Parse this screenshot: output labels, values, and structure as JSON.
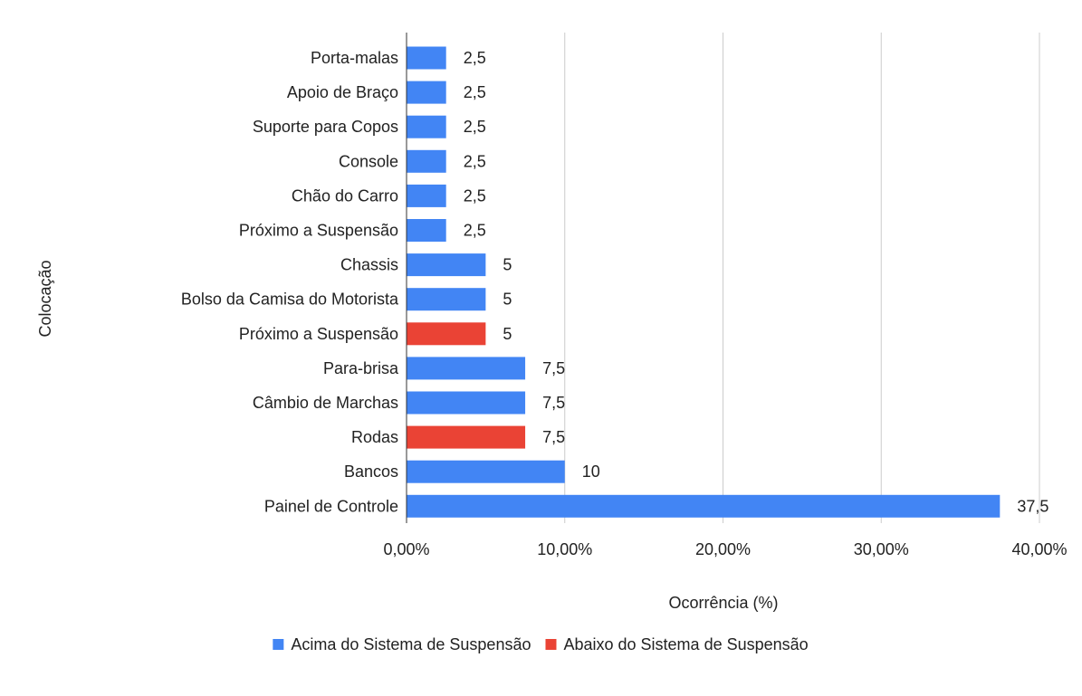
{
  "chart_data": {
    "type": "bar",
    "orientation": "horizontal",
    "categories": [
      "Porta-malas",
      "Apoio de Braço",
      "Suporte para Copos",
      "Console",
      "Chão do Carro",
      "Próximo a Suspensão",
      "Chassis",
      "Bolso da Camisa do Motorista",
      "Próximo a Suspensão",
      "Para-brisa",
      "Câmbio de Marchas",
      "Rodas",
      "Bancos",
      "Painel de Controle"
    ],
    "values": [
      2.5,
      2.5,
      2.5,
      2.5,
      2.5,
      2.5,
      5,
      5,
      5,
      7.5,
      7.5,
      7.5,
      10,
      37.5
    ],
    "value_labels": [
      "2,5",
      "2,5",
      "2,5",
      "2,5",
      "2,5",
      "2,5",
      "5",
      "5",
      "5",
      "7,5",
      "7,5",
      "7,5",
      "10",
      "37,5"
    ],
    "series_index": [
      0,
      0,
      0,
      0,
      0,
      0,
      0,
      0,
      1,
      0,
      0,
      1,
      0,
      0
    ],
    "series": [
      {
        "name": "Acima do Sistema de Suspensão",
        "color": "#4285f4"
      },
      {
        "name": "Abaixo do Sistema de Suspensão",
        "color": "#ea4335"
      }
    ],
    "title": "",
    "xlabel": "Ocorrência (%)",
    "ylabel": "Colocação",
    "xlim": [
      0,
      40
    ],
    "xticks": [
      0,
      10,
      20,
      30,
      40
    ],
    "xtick_labels": [
      "0,00%",
      "10,00%",
      "20,00%",
      "30,00%",
      "40,00%"
    ],
    "grid": true,
    "legend_position": "bottom"
  }
}
